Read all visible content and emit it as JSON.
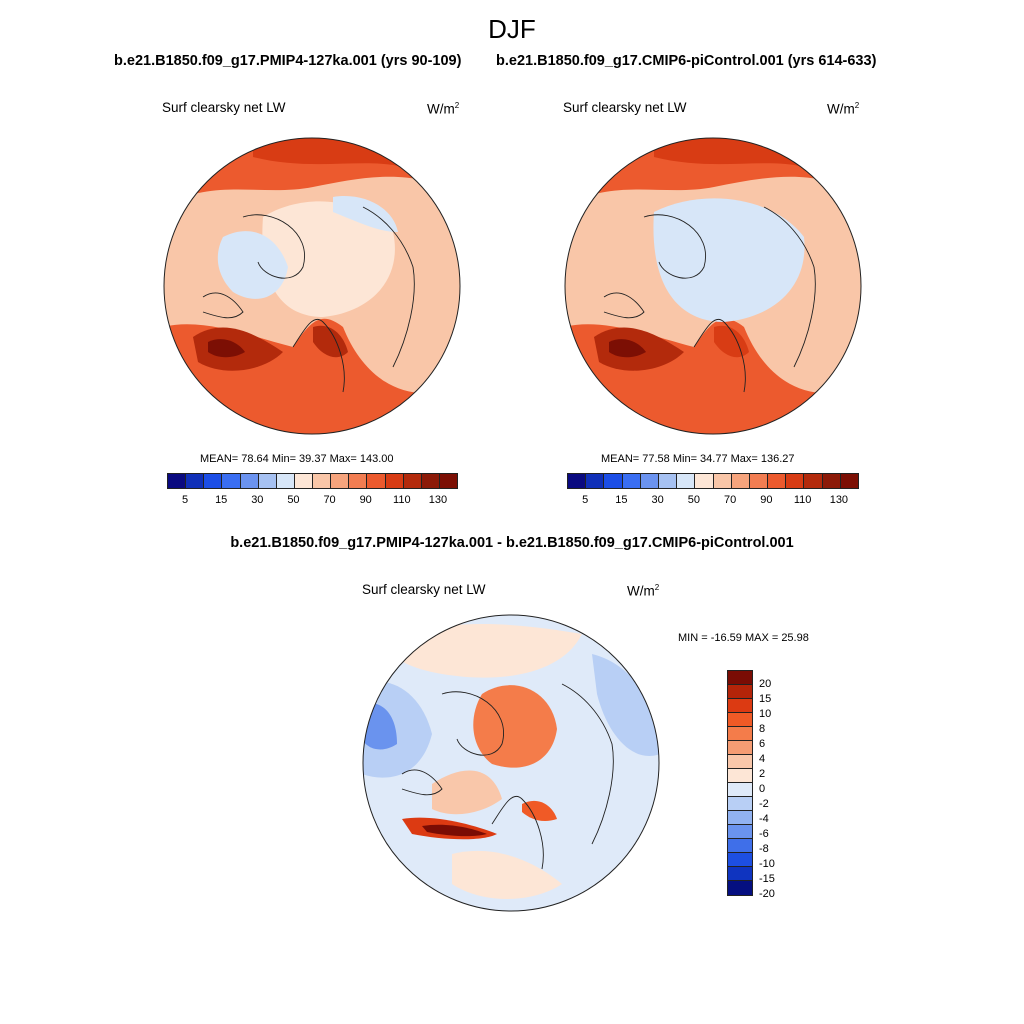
{
  "figure": {
    "season": "DJF",
    "panel_a_title": "b.e21.B1850.f09_g17.PMIP4-127ka.001 (yrs 90-109)",
    "panel_b_title": "b.e21.B1850.f09_g17.CMIP6-piControl.001 (yrs 614-633)",
    "panel_c_title": "b.e21.B1850.f09_g17.PMIP4-127ka.001 - b.e21.B1850.f09_g17.CMIP6-piControl.001",
    "variable": "Surf clearsky net LW",
    "units_base": "W/m",
    "units_exp": "2"
  },
  "chart_data": [
    {
      "type": "heatmap",
      "projection": "north-polar-stereographic",
      "title": "b.e21.B1850.f09_g17.PMIP4-127ka.001 (yrs 90-109)",
      "variable": "Surf clearsky net LW",
      "units": "W/m2",
      "stats": {
        "mean": "78.64",
        "min": "39.37",
        "max": "143.00"
      },
      "stats_text": "MEAN=  78.64  Min=  39.37  Max= 143.00",
      "levels": [
        5,
        10,
        15,
        20,
        30,
        40,
        50,
        60,
        70,
        80,
        90,
        100,
        110,
        120,
        130
      ],
      "tick_labels": [
        "5",
        "15",
        "30",
        "50",
        "70",
        "90",
        "110",
        "130"
      ],
      "colors": [
        "#0a0a80",
        "#1030b8",
        "#1c4ee6",
        "#3a6ef2",
        "#6b93f0",
        "#a6c1f2",
        "#d7e6f8",
        "#fde6d6",
        "#f9c6a8",
        "#f6a47d",
        "#f27d52",
        "#ec5a2e",
        "#d83c14",
        "#b32a0c",
        "#8c1a08",
        "#7c0f04"
      ]
    },
    {
      "type": "heatmap",
      "projection": "north-polar-stereographic",
      "title": "b.e21.B1850.f09_g17.CMIP6-piControl.001 (yrs 614-633)",
      "variable": "Surf clearsky net LW",
      "units": "W/m2",
      "stats": {
        "mean": "77.58",
        "min": "34.77",
        "max": "136.27"
      },
      "stats_text": "MEAN=  77.58  Min=  34.77  Max= 136.27",
      "levels": [
        5,
        10,
        15,
        20,
        30,
        40,
        50,
        60,
        70,
        80,
        90,
        100,
        110,
        120,
        130
      ],
      "tick_labels": [
        "5",
        "15",
        "30",
        "50",
        "70",
        "90",
        "110",
        "130"
      ],
      "colors": [
        "#0a0a80",
        "#1030b8",
        "#1c4ee6",
        "#3a6ef2",
        "#6b93f0",
        "#a6c1f2",
        "#d7e6f8",
        "#fde6d6",
        "#f9c6a8",
        "#f6a47d",
        "#f27d52",
        "#ec5a2e",
        "#d83c14",
        "#b32a0c",
        "#8c1a08",
        "#7c0f04"
      ]
    },
    {
      "type": "heatmap",
      "projection": "north-polar-stereographic",
      "title": "b.e21.B1850.f09_g17.PMIP4-127ka.001 - b.e21.B1850.f09_g17.CMIP6-piControl.001",
      "variable": "Surf clearsky net LW",
      "units": "W/m2",
      "stats": {
        "min": "-16.59",
        "max": "25.98"
      },
      "stats_text": "MIN = -16.59 MAX =  25.98",
      "levels": [
        20,
        15,
        10,
        8,
        6,
        4,
        2,
        0,
        -2,
        -4,
        -6,
        -8,
        -10,
        -15,
        -20
      ],
      "tick_labels": [
        "20",
        "15",
        "10",
        "8",
        "6",
        "4",
        "2",
        "0",
        "-2",
        "-4",
        "-6",
        "-8",
        "-10",
        "-15",
        "-20"
      ],
      "colors": [
        "#7a0c04",
        "#b42409",
        "#dc3a12",
        "#f05a26",
        "#f47c4a",
        "#f59c73",
        "#f9c7aa",
        "#fde6d6",
        "#dfeaf9",
        "#b8cff5",
        "#91b2f1",
        "#6a93ee",
        "#3f6fe9",
        "#1d4fe2",
        "#0f34c0",
        "#050f80"
      ]
    }
  ]
}
